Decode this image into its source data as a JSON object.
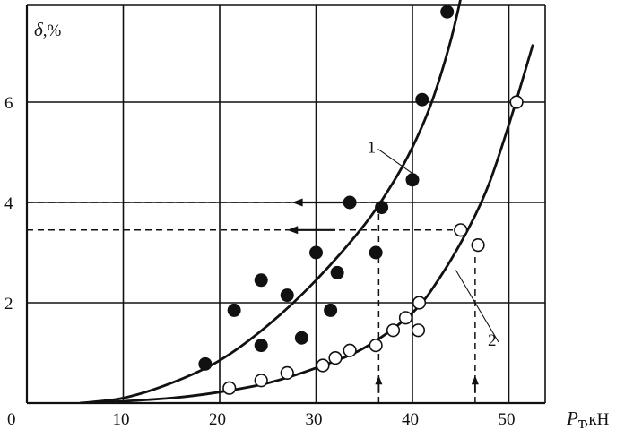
{
  "chart_data": {
    "type": "scatter",
    "title": "",
    "xlabel": "P",
    "xlabel_sub": "т",
    "xlabel_unit": ",кН",
    "ylabel": "δ",
    "ylabel_unit": ",%",
    "xlim": [
      0,
      55
    ],
    "ylim": [
      0,
      7.5
    ],
    "x_ticks": [
      "0",
      "10",
      "20",
      "30",
      "40",
      "50"
    ],
    "y_ticks": [
      "2",
      "4",
      "6"
    ],
    "grid": true,
    "series": [
      {
        "name": "1",
        "marker": "filled-circle",
        "points": [
          [
            18.5,
            0.78
          ],
          [
            21.5,
            1.85
          ],
          [
            24.3,
            2.45
          ],
          [
            24.3,
            1.15
          ],
          [
            27.0,
            2.15
          ],
          [
            28.5,
            1.3
          ],
          [
            30.0,
            3.0
          ],
          [
            31.5,
            1.85
          ],
          [
            32.2,
            2.6
          ],
          [
            33.5,
            4.0
          ],
          [
            36.2,
            3.0
          ],
          [
            36.8,
            3.9
          ],
          [
            40.0,
            4.45
          ],
          [
            41.0,
            6.05
          ],
          [
            43.6,
            7.8
          ]
        ],
        "fit_curve": [
          [
            5.5,
            0.0
          ],
          [
            10,
            0.1
          ],
          [
            15,
            0.4
          ],
          [
            20,
            0.85
          ],
          [
            25,
            1.55
          ],
          [
            30,
            2.45
          ],
          [
            35,
            3.55
          ],
          [
            38,
            4.4
          ],
          [
            40,
            5.1
          ],
          [
            42,
            6.0
          ],
          [
            44,
            7.25
          ],
          [
            45.5,
            8.5
          ]
        ]
      },
      {
        "name": "2",
        "marker": "open-circle",
        "points": [
          [
            21.0,
            0.3
          ],
          [
            24.3,
            0.45
          ],
          [
            27.0,
            0.6
          ],
          [
            30.7,
            0.75
          ],
          [
            32.0,
            0.9
          ],
          [
            33.5,
            1.05
          ],
          [
            36.2,
            1.15
          ],
          [
            38.0,
            1.45
          ],
          [
            39.3,
            1.7
          ],
          [
            40.6,
            1.45
          ],
          [
            40.7,
            2.0
          ],
          [
            45.0,
            3.45
          ],
          [
            46.8,
            3.15
          ],
          [
            50.8,
            6.0
          ]
        ],
        "fit_curve": [
          [
            7.0,
            0.0
          ],
          [
            15,
            0.1
          ],
          [
            20,
            0.22
          ],
          [
            25,
            0.4
          ],
          [
            30,
            0.7
          ],
          [
            35,
            1.1
          ],
          [
            40,
            1.8
          ],
          [
            43,
            2.55
          ],
          [
            46,
            3.55
          ],
          [
            48,
            4.4
          ],
          [
            50,
            5.55
          ],
          [
            51.5,
            6.5
          ],
          [
            52.5,
            7.15
          ]
        ]
      }
    ],
    "annotations": {
      "horizontal_dashed": [
        {
          "y": 4.0,
          "x_from": 0,
          "x_to": 37.5
        },
        {
          "y": 3.45,
          "x_from": 0,
          "x_to": 45.5
        }
      ],
      "vertical_dashed": [
        {
          "x": 36.5,
          "y_from": 0,
          "y_to": 3.95
        },
        {
          "x": 46.5,
          "y_from": 0,
          "y_to": 3.0
        }
      ],
      "left_arrows": [
        {
          "y": 4.0,
          "x_from": 33.0,
          "x_to": 27.5
        },
        {
          "y": 3.45,
          "x_from": 32.0,
          "x_to": 27.0
        }
      ],
      "up_arrows": [
        {
          "x": 36.5,
          "y_from": 0.2,
          "y_to": 0.55
        },
        {
          "x": 46.5,
          "y_from": 0.2,
          "y_to": 0.55
        }
      ],
      "curve_labels": [
        {
          "text": "1",
          "x": 35.5,
          "y": 5.1,
          "leader_to": [
            40.2,
            4.55
          ]
        },
        {
          "text": "2",
          "x": 48.0,
          "y": 1.25,
          "leader_to": [
            44.5,
            2.65
          ]
        }
      ]
    }
  }
}
